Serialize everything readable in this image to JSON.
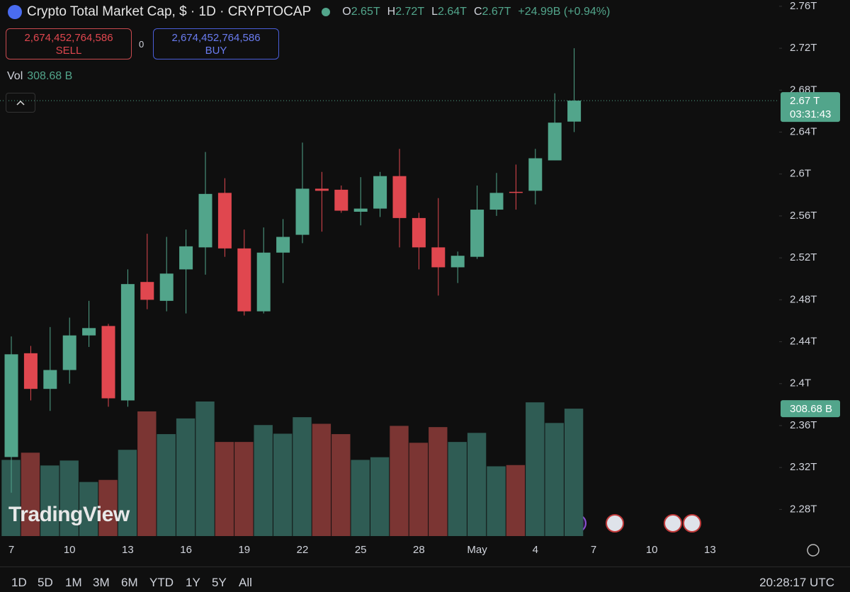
{
  "chart_data": {
    "type": "candlestick",
    "title": "Crypto Total Market Cap, $ · 1D · CRYPTOCAP",
    "legend": [
      {
        "key": "O",
        "value": "2.65T"
      },
      {
        "key": "H",
        "value": "2.72T"
      },
      {
        "key": "L",
        "value": "2.64T"
      },
      {
        "key": "C",
        "value": "2.67T"
      }
    ],
    "change": "+24.99B (+0.94%)",
    "sell": {
      "price": "2,674,452,764,586",
      "label": "SELL"
    },
    "spread": "0",
    "buy": {
      "price": "2,674,452,764,586",
      "label": "BUY"
    },
    "volume_title": "Vol",
    "volume_label": "308.68 B",
    "last_label": "2.67 T",
    "countdown": "03:31:43",
    "watermark": "TradingView",
    "categories": [
      "7",
      null,
      null,
      "10",
      null,
      null,
      "13",
      null,
      null,
      "16",
      null,
      null,
      "19",
      null,
      null,
      "22",
      null,
      null,
      "25",
      null,
      null,
      "28",
      null,
      null,
      "May",
      null,
      null,
      "4",
      null,
      null,
      "7",
      null,
      null,
      "10",
      null,
      null,
      "13"
    ],
    "open": [
      2.33,
      2.429,
      2.395,
      2.413,
      2.446,
      2.455,
      2.384,
      2.497,
      2.479,
      2.509,
      2.53,
      2.582,
      2.529,
      2.469,
      2.525,
      2.542,
      2.586,
      2.585,
      2.564,
      2.567,
      2.598,
      2.558,
      2.53,
      2.511,
      2.521,
      2.566,
      2.583,
      2.584,
      2.613,
      2.65,
      null,
      null,
      null,
      null,
      null,
      null,
      null
    ],
    "high": [
      2.445,
      2.436,
      2.454,
      2.463,
      2.479,
      2.457,
      2.509,
      2.543,
      2.54,
      2.547,
      2.621,
      2.596,
      2.547,
      2.549,
      2.557,
      2.63,
      2.602,
      2.589,
      2.597,
      2.602,
      2.624,
      2.563,
      2.577,
      2.526,
      2.589,
      2.601,
      2.609,
      2.624,
      2.677,
      2.72,
      null,
      null,
      null,
      null,
      null,
      null,
      null
    ],
    "low": [
      2.296,
      2.384,
      2.374,
      2.4,
      2.435,
      2.378,
      2.378,
      2.471,
      2.469,
      2.467,
      2.504,
      2.521,
      2.465,
      2.467,
      2.496,
      2.534,
      2.545,
      2.563,
      2.551,
      2.559,
      2.53,
      2.509,
      2.484,
      2.496,
      2.519,
      2.56,
      2.566,
      2.571,
      2.613,
      2.64,
      null,
      null,
      null,
      null,
      null,
      null,
      null
    ],
    "close": [
      2.428,
      2.395,
      2.413,
      2.446,
      2.453,
      2.386,
      2.495,
      2.48,
      2.505,
      2.531,
      2.581,
      2.529,
      2.469,
      2.525,
      2.54,
      2.586,
      2.584,
      2.565,
      2.567,
      2.598,
      2.558,
      2.53,
      2.511,
      2.522,
      2.566,
      2.582,
      2.582,
      2.615,
      2.649,
      2.67,
      null,
      null,
      null,
      null,
      null,
      null,
      null
    ],
    "volume": [
      184.5,
      202,
      171,
      183,
      131,
      136,
      209,
      302,
      247,
      285,
      326,
      228,
      228,
      269,
      248,
      288,
      272,
      247,
      184.5,
      191,
      267,
      226,
      264,
      228,
      250,
      169,
      172,
      324,
      274,
      308.68,
      null,
      null,
      null,
      null,
      null,
      null,
      null
    ],
    "up_color": "#52a58b",
    "down_color": "#e0474f",
    "volume_up_color": "#2f5c54",
    "volume_down_color": "#7b3533",
    "ylim": [
      2.2546,
      2.766
    ],
    "yticks": [
      {
        "value": 2.76,
        "label": "2.76T"
      },
      {
        "value": 2.72,
        "label": "2.72T"
      },
      {
        "value": 2.68,
        "label": "2.68T"
      },
      {
        "value": 2.64,
        "label": "2.64T"
      },
      {
        "value": 2.6,
        "label": "2.6T"
      },
      {
        "value": 2.56,
        "label": "2.56T"
      },
      {
        "value": 2.52,
        "label": "2.52T"
      },
      {
        "value": 2.48,
        "label": "2.48T"
      },
      {
        "value": 2.44,
        "label": "2.44T"
      },
      {
        "value": 2.4,
        "label": "2.4T"
      },
      {
        "value": 2.36,
        "label": "2.36T"
      },
      {
        "value": 2.32,
        "label": "2.32T"
      },
      {
        "value": 2.28,
        "label": "2.28T"
      }
    ],
    "periods": [
      "1D",
      "5D",
      "1M",
      "3M",
      "6M",
      "YTD",
      "1Y",
      "5Y",
      "All"
    ],
    "clock": "20:28:17 UTC"
  }
}
